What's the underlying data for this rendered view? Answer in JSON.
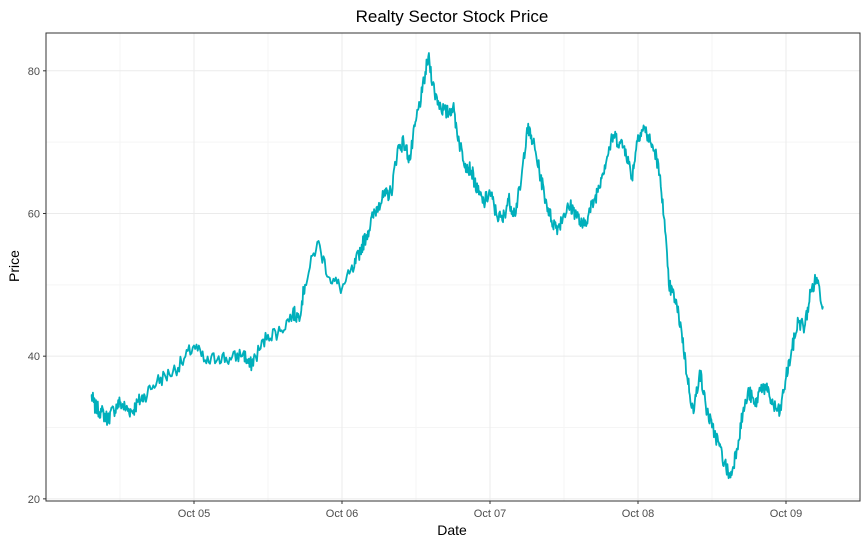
{
  "chart_data": {
    "type": "line",
    "title": "Realty Sector Stock Price",
    "xlabel": "Date",
    "ylabel": "Price",
    "ylim": [
      19.7,
      85.3
    ],
    "xlim": [
      "2020-10-04 00:00",
      "2020-10-09 12:00"
    ],
    "x_ticks": [
      {
        "x": "2020-10-05",
        "label": "Oct 05"
      },
      {
        "x": "2020-10-06",
        "label": "Oct 06"
      },
      {
        "x": "2020-10-07",
        "label": "Oct 07"
      },
      {
        "x": "2020-10-08",
        "label": "Oct 08"
      },
      {
        "x": "2020-10-09",
        "label": "Oct 09"
      }
    ],
    "y_ticks": [
      20,
      40,
      60,
      80
    ],
    "grid": true,
    "colors": {
      "line": "#00AFBB",
      "grid_major": "#EBEBEB",
      "grid_minor": "#F5F5F5",
      "border": "#333333"
    },
    "series": [
      {
        "x": [
          "2020-10-04 07:20",
          "2020-10-04 08:00",
          "2020-10-04 09:00",
          "2020-10-04 10:00",
          "2020-10-04 11:00",
          "2020-10-04 12:00",
          "2020-10-04 13:00",
          "2020-10-04 14:00",
          "2020-10-04 15:00",
          "2020-10-04 16:00",
          "2020-10-04 18:00",
          "2020-10-04 20:00",
          "2020-10-04 22:00",
          "2020-10-05 00:00",
          "2020-10-05 02:00",
          "2020-10-05 04:00",
          "2020-10-05 06:00",
          "2020-10-05 08:00",
          "2020-10-05 09:00",
          "2020-10-05 10:00",
          "2020-10-05 12:00",
          "2020-10-05 14:00",
          "2020-10-05 16:00",
          "2020-10-05 17:00",
          "2020-10-05 18:00",
          "2020-10-05 20:00",
          "2020-10-05 22:00",
          "2020-10-06 00:00",
          "2020-10-06 02:00",
          "2020-10-06 03:00",
          "2020-10-06 04:00",
          "2020-10-06 05:00",
          "2020-10-06 06:00",
          "2020-10-06 07:00",
          "2020-10-06 08:00",
          "2020-10-06 09:00",
          "2020-10-06 10:00",
          "2020-10-06 11:00",
          "2020-10-06 12:00",
          "2020-10-06 13:00",
          "2020-10-06 14:00",
          "2020-10-06 15:00",
          "2020-10-06 16:00",
          "2020-10-06 17:00",
          "2020-10-06 18:00",
          "2020-10-06 19:00",
          "2020-10-06 20:00",
          "2020-10-06 21:00",
          "2020-10-06 22:00",
          "2020-10-06 23:00",
          "2020-10-07 00:00",
          "2020-10-07 01:00",
          "2020-10-07 02:00",
          "2020-10-07 03:00",
          "2020-10-07 04:00",
          "2020-10-07 05:00",
          "2020-10-07 06:00",
          "2020-10-07 07:00",
          "2020-10-07 08:00",
          "2020-10-07 09:00",
          "2020-10-07 10:00",
          "2020-10-07 11:00",
          "2020-10-07 12:00",
          "2020-10-07 13:00",
          "2020-10-07 14:00",
          "2020-10-07 15:00",
          "2020-10-07 16:00",
          "2020-10-07 17:00",
          "2020-10-07 18:00",
          "2020-10-07 19:00",
          "2020-10-07 20:00",
          "2020-10-07 21:00",
          "2020-10-07 22:00",
          "2020-10-07 23:00",
          "2020-10-08 00:00",
          "2020-10-08 01:00",
          "2020-10-08 02:00",
          "2020-10-08 03:00",
          "2020-10-08 04:00",
          "2020-10-08 05:00",
          "2020-10-08 06:00",
          "2020-10-08 07:00",
          "2020-10-08 08:00",
          "2020-10-08 09:00",
          "2020-10-08 10:00",
          "2020-10-08 11:00",
          "2020-10-08 12:00",
          "2020-10-08 13:00",
          "2020-10-08 14:00",
          "2020-10-08 15:00",
          "2020-10-08 16:00",
          "2020-10-08 17:00",
          "2020-10-08 18:00",
          "2020-10-08 19:00",
          "2020-10-08 20:00",
          "2020-10-08 21:00",
          "2020-10-08 22:00",
          "2020-10-08 23:00",
          "2020-10-09 00:00",
          "2020-10-09 01:00",
          "2020-10-09 02:00",
          "2020-10-09 03:00",
          "2020-10-09 04:00",
          "2020-10-09 05:00",
          "2020-10-09 06:00"
        ],
        "values": [
          34.5,
          32.8,
          32.2,
          31.2,
          32.5,
          33.5,
          32.6,
          32.3,
          33.6,
          34.5,
          36.5,
          37.5,
          39.0,
          41.5,
          39.0,
          40.0,
          39.5,
          40.5,
          38.5,
          40.0,
          43.0,
          43.5,
          46.0,
          45.5,
          50.0,
          56.0,
          51.0,
          49.5,
          52.5,
          55.0,
          57.0,
          59.5,
          61.5,
          62.5,
          63.0,
          69.0,
          70.0,
          67.5,
          73.0,
          77.0,
          82.0,
          77.0,
          75.0,
          74.0,
          75.0,
          70.0,
          67.0,
          66.0,
          63.0,
          61.5,
          63.0,
          60.0,
          59.0,
          62.0,
          60.0,
          64.0,
          72.0,
          70.0,
          66.0,
          62.0,
          59.0,
          58.0,
          60.0,
          61.0,
          60.0,
          58.0,
          60.0,
          62.0,
          65.0,
          68.0,
          71.0,
          70.0,
          69.0,
          65.0,
          71.0,
          72.0,
          70.0,
          68.0,
          62.0,
          50.0,
          48.0,
          44.0,
          37.0,
          32.0,
          38.0,
          33.0,
          30.0,
          28.0,
          25.0,
          23.0,
          27.0,
          32.0,
          35.0,
          33.0,
          36.0,
          35.0,
          33.0,
          32.0,
          37.0,
          41.0,
          45.0,
          44.0,
          49.0,
          51.0,
          47.0
        ]
      }
    ]
  }
}
